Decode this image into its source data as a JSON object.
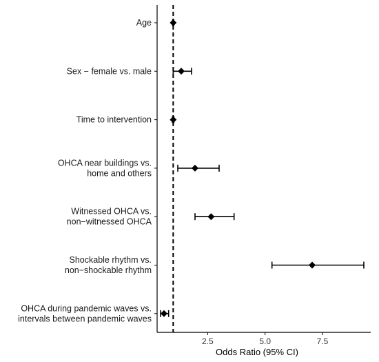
{
  "chart_data": {
    "type": "scatter",
    "subtype": "forest-plot",
    "xlabel": "Odds Ratio (95% CI)",
    "ylabel": "",
    "xlim": [
      0.3,
      9.6
    ],
    "xticks": [
      2.5,
      5.0,
      7.5
    ],
    "xtick_labels": [
      "2.5",
      "5.0",
      "7.5"
    ],
    "reference_line": 1.0,
    "grid": false,
    "rows": [
      {
        "label_lines": [
          "Age"
        ],
        "or": 1.0,
        "ci_low": 0.98,
        "ci_high": 1.02
      },
      {
        "label_lines": [
          "Sex − female vs. male"
        ],
        "or": 1.35,
        "ci_low": 1.0,
        "ci_high": 1.8
      },
      {
        "label_lines": [
          "Time to intervention"
        ],
        "or": 1.0,
        "ci_low": 0.97,
        "ci_high": 1.03
      },
      {
        "label_lines": [
          "OHCA near buildings vs.",
          "home and others"
        ],
        "or": 1.95,
        "ci_low": 1.2,
        "ci_high": 3.0
      },
      {
        "label_lines": [
          "Witnessed OHCA vs.",
          "non−witnessed OHCA"
        ],
        "or": 2.65,
        "ci_low": 1.95,
        "ci_high": 3.65
      },
      {
        "label_lines": [
          "Shockable rhythm vs.",
          "non−shockable rhythm"
        ],
        "or": 7.05,
        "ci_low": 5.3,
        "ci_high": 9.3
      },
      {
        "label_lines": [
          "OHCA during pandemic waves vs.",
          "intervals between pandemic waves"
        ],
        "or": 0.6,
        "ci_low": 0.45,
        "ci_high": 0.8
      }
    ]
  }
}
